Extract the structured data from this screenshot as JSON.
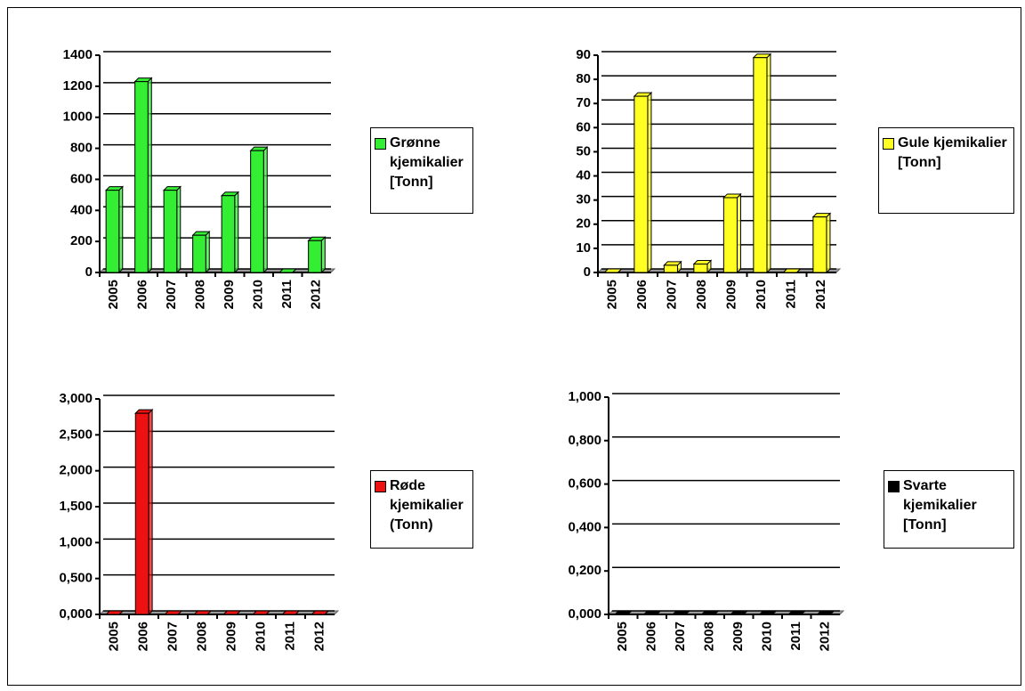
{
  "chart_data": [
    {
      "type": "bar",
      "categories": [
        "2005",
        "2006",
        "2007",
        "2008",
        "2009",
        "2010",
        "2011",
        "2012"
      ],
      "series": [
        {
          "name": "Grønne kjemikalier [Tonn]",
          "color": "#33ee33",
          "values": [
            530,
            1230,
            530,
            240,
            495,
            785,
            0,
            205
          ]
        }
      ],
      "ylim": [
        0,
        1400
      ],
      "yticks": [
        0,
        200,
        400,
        600,
        800,
        1000,
        1200,
        1400
      ],
      "grid": true,
      "legend": "right"
    },
    {
      "type": "bar",
      "categories": [
        "2005",
        "2006",
        "2007",
        "2008",
        "2009",
        "2010",
        "2011",
        "2012"
      ],
      "series": [
        {
          "name": "Gule kjemikalier [Tonn]",
          "color": "#ffff22",
          "values": [
            0,
            73,
            3,
            3.5,
            31,
            89,
            0,
            23
          ]
        }
      ],
      "ylim": [
        0,
        90
      ],
      "yticks": [
        0,
        10,
        20,
        30,
        40,
        50,
        60,
        70,
        80,
        90
      ],
      "grid": true,
      "legend": "right"
    },
    {
      "type": "bar",
      "categories": [
        "2005",
        "2006",
        "2007",
        "2008",
        "2009",
        "2010",
        "2011",
        "2012"
      ],
      "series": [
        {
          "name": "Røde kjemikalier (Tonn)",
          "color": "#ee1111",
          "values": [
            0,
            2.8,
            0,
            0,
            0,
            0,
            0,
            0
          ]
        }
      ],
      "ylim": [
        0,
        3
      ],
      "yticks": [
        {
          "value": 0,
          "label": "0,000"
        },
        {
          "value": 0.5,
          "label": "0,500"
        },
        {
          "value": 1,
          "label": "1,000"
        },
        {
          "value": 1.5,
          "label": "1,500"
        },
        {
          "value": 2,
          "label": "2,000"
        },
        {
          "value": 2.5,
          "label": "2,500"
        },
        {
          "value": 3,
          "label": "3,000"
        }
      ],
      "grid": true,
      "legend": "right"
    },
    {
      "type": "bar",
      "categories": [
        "2005",
        "2006",
        "2007",
        "2008",
        "2009",
        "2010",
        "2011",
        "2012"
      ],
      "series": [
        {
          "name": "Svarte kjemikalier [Tonn]",
          "color": "#000000",
          "values": [
            0,
            0,
            0,
            0,
            0,
            0,
            0,
            0
          ]
        }
      ],
      "ylim": [
        0,
        1
      ],
      "yticks": [
        {
          "value": 0,
          "label": "0,000"
        },
        {
          "value": 0.2,
          "label": "0,200"
        },
        {
          "value": 0.4,
          "label": "0,400"
        },
        {
          "value": 0.6,
          "label": "0,600"
        },
        {
          "value": 0.8,
          "label": "0,800"
        },
        {
          "value": 1,
          "label": "1,000"
        }
      ],
      "grid": true,
      "legend": "right"
    }
  ]
}
